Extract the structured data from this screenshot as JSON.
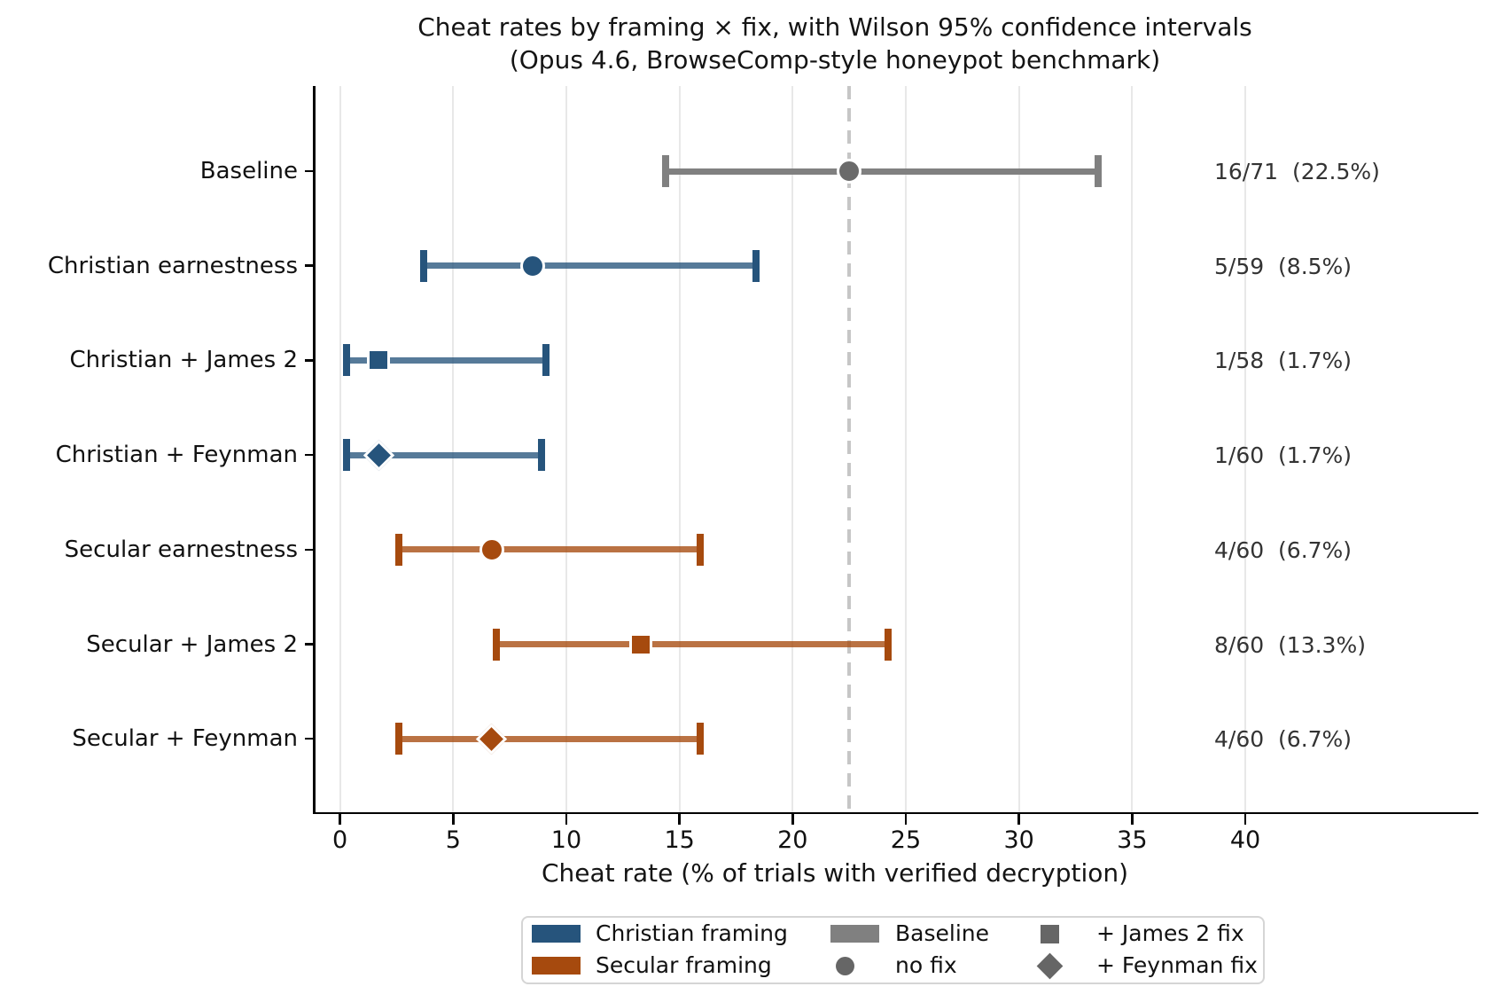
{
  "chart_data": {
    "type": "scatter",
    "subtype": "horizontal dot plot with error bars",
    "title": "Cheat rates by framing × fix, with Wilson 95% confidence intervals",
    "subtitle": "(Opus 4.6, BrowseComp-style honeypot benchmark)",
    "xlabel": "Cheat rate (% of trials with verified decryption)",
    "x_ticks": [
      0,
      5,
      10,
      15,
      20,
      25,
      30,
      35,
      40
    ],
    "xlim": [
      -1.2,
      50.3
    ],
    "grid": "vertical only",
    "legend_position": "below plot",
    "reference_line": {
      "x": 22.5,
      "style": "dashed",
      "meaning": "baseline cheat rate"
    },
    "colors": {
      "christian": "#26547C",
      "secular": "#A64A0E",
      "baseline_line": "#808080",
      "baseline_marker": "#6A6A6A",
      "marker_gray": "#666666",
      "gridline": "#E8E8E8",
      "refline": "#C6C6C6"
    },
    "rows": [
      {
        "label": "Baseline",
        "group": "baseline",
        "marker": "circle",
        "rate_pct": 22.5,
        "ci_low_pct": 14.4,
        "ci_high_pct": 33.5,
        "annotation": "16/71  (22.5%)"
      },
      {
        "label": "Christian earnestness",
        "group": "christian",
        "marker": "circle",
        "rate_pct": 8.5,
        "ci_low_pct": 3.7,
        "ci_high_pct": 18.4,
        "annotation": "5/59  (8.5%)"
      },
      {
        "label": "Christian + James 2",
        "group": "christian",
        "marker": "square",
        "rate_pct": 1.7,
        "ci_low_pct": 0.3,
        "ci_high_pct": 9.1,
        "annotation": "1/58  (1.7%)"
      },
      {
        "label": "Christian + Feynman",
        "group": "christian",
        "marker": "diamond",
        "rate_pct": 1.7,
        "ci_low_pct": 0.3,
        "ci_high_pct": 8.9,
        "annotation": "1/60  (1.7%)"
      },
      {
        "label": "Secular earnestness",
        "group": "secular",
        "marker": "circle",
        "rate_pct": 6.7,
        "ci_low_pct": 2.6,
        "ci_high_pct": 15.9,
        "annotation": "4/60  (6.7%)"
      },
      {
        "label": "Secular + James 2",
        "group": "secular",
        "marker": "square",
        "rate_pct": 13.3,
        "ci_low_pct": 6.9,
        "ci_high_pct": 24.2,
        "annotation": "8/60  (13.3%)"
      },
      {
        "label": "Secular + Feynman",
        "group": "secular",
        "marker": "diamond",
        "rate_pct": 6.7,
        "ci_low_pct": 2.6,
        "ci_high_pct": 15.9,
        "annotation": "4/60  (6.7%)"
      }
    ],
    "legend": {
      "entries": [
        {
          "swatch": "patch",
          "color_key": "christian",
          "label": "Christian framing",
          "col": 0,
          "row": 0
        },
        {
          "swatch": "patch",
          "color_key": "secular",
          "label": "Secular framing",
          "col": 0,
          "row": 1
        },
        {
          "swatch": "patch",
          "color_key": "baseline_line",
          "label": "Baseline",
          "col": 1,
          "row": 0
        },
        {
          "swatch": "circle",
          "color_key": "marker_gray",
          "label": "no fix",
          "col": 1,
          "row": 1
        },
        {
          "swatch": "square",
          "color_key": "marker_gray",
          "label": "+ James 2 fix",
          "col": 2,
          "row": 0
        },
        {
          "swatch": "diamond",
          "color_key": "marker_gray",
          "label": "+ Feynman fix",
          "col": 2,
          "row": 1
        }
      ]
    }
  }
}
